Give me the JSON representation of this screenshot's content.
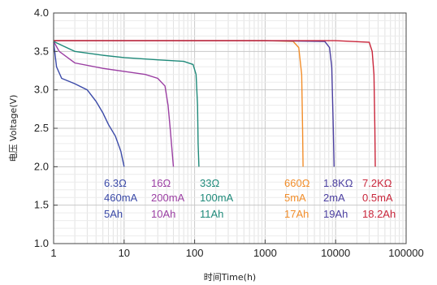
{
  "chart_data": {
    "type": "line",
    "title": "",
    "xlabel": "时间Time(h)",
    "ylabel": "电压 Voltage(V)",
    "x_scale": "log",
    "xlim": [
      1,
      100000
    ],
    "ylim": [
      1.0,
      4.0
    ],
    "grid": true,
    "x_ticks": [
      "1",
      "10",
      "100",
      "1000",
      "10000",
      "100000"
    ],
    "y_ticks": [
      "1.0",
      "1.5",
      "2.0",
      "2.5",
      "3.0",
      "3.5",
      "4.0"
    ],
    "series": [
      {
        "color": "#3b4aa8",
        "points": [
          [
            1,
            3.62
          ],
          [
            1.1,
            3.3
          ],
          [
            1.3,
            3.15
          ],
          [
            2,
            3.08
          ],
          [
            3,
            3.0
          ],
          [
            4,
            2.85
          ],
          [
            5,
            2.7
          ],
          [
            6,
            2.55
          ],
          [
            7.5,
            2.4
          ],
          [
            9,
            2.2
          ],
          [
            10,
            2.0
          ]
        ],
        "labels": [
          "6.3Ω",
          "460mA",
          "5Ah"
        ]
      },
      {
        "color": "#9b3fa3",
        "points": [
          [
            1,
            3.63
          ],
          [
            1.2,
            3.5
          ],
          [
            2,
            3.35
          ],
          [
            5,
            3.28
          ],
          [
            10,
            3.24
          ],
          [
            20,
            3.2
          ],
          [
            30,
            3.15
          ],
          [
            38,
            3.05
          ],
          [
            42,
            2.8
          ],
          [
            45,
            2.5
          ],
          [
            48,
            2.2
          ],
          [
            50,
            2.0
          ]
        ],
        "labels": [
          "16Ω",
          "200mA",
          "10Ah"
        ]
      },
      {
        "color": "#1f8a7a",
        "points": [
          [
            1,
            3.63
          ],
          [
            1.3,
            3.58
          ],
          [
            2,
            3.5
          ],
          [
            5,
            3.45
          ],
          [
            10,
            3.42
          ],
          [
            30,
            3.39
          ],
          [
            70,
            3.37
          ],
          [
            95,
            3.33
          ],
          [
            105,
            3.2
          ],
          [
            110,
            2.8
          ],
          [
            112,
            2.3
          ],
          [
            115,
            2.0
          ]
        ],
        "labels": [
          "33Ω",
          "100mA",
          "11Ah"
        ]
      },
      {
        "color": "#f28e2b",
        "points": [
          [
            1,
            3.64
          ],
          [
            100,
            3.64
          ],
          [
            1000,
            3.64
          ],
          [
            2500,
            3.63
          ],
          [
            3000,
            3.55
          ],
          [
            3300,
            3.2
          ],
          [
            3400,
            2.5
          ],
          [
            3450,
            2.0
          ]
        ],
        "labels": [
          "660Ω",
          "5mA",
          "17Ah"
        ]
      },
      {
        "color": "#4b3fa0",
        "points": [
          [
            1,
            3.64
          ],
          [
            100,
            3.64
          ],
          [
            1000,
            3.64
          ],
          [
            7000,
            3.63
          ],
          [
            8200,
            3.55
          ],
          [
            8800,
            3.3
          ],
          [
            9200,
            2.6
          ],
          [
            9500,
            2.0
          ]
        ],
        "labels": [
          "1.8KΩ",
          "2mA",
          "19Ah"
        ]
      },
      {
        "color": "#c9263b",
        "points": [
          [
            1,
            3.64
          ],
          [
            100,
            3.64
          ],
          [
            1000,
            3.64
          ],
          [
            10000,
            3.64
          ],
          [
            30000,
            3.62
          ],
          [
            33000,
            3.5
          ],
          [
            35000,
            3.2
          ],
          [
            36000,
            2.5
          ],
          [
            36500,
            2.0
          ]
        ],
        "labels": [
          "7.2KΩ",
          "0.5mA",
          "18.2Ah"
        ]
      }
    ]
  }
}
